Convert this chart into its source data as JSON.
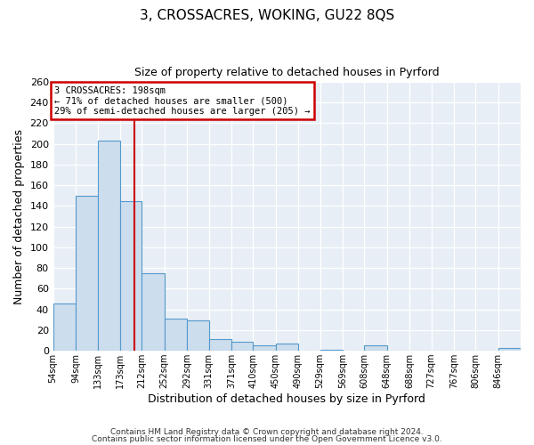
{
  "title": "3, CROSSACRES, WOKING, GU22 8QS",
  "subtitle": "Size of property relative to detached houses in Pyrford",
  "xlabel": "Distribution of detached houses by size in Pyrford",
  "ylabel": "Number of detached properties",
  "bin_labels": [
    "54sqm",
    "94sqm",
    "133sqm",
    "173sqm",
    "212sqm",
    "252sqm",
    "292sqm",
    "331sqm",
    "371sqm",
    "410sqm",
    "450sqm",
    "490sqm",
    "529sqm",
    "569sqm",
    "608sqm",
    "648sqm",
    "688sqm",
    "727sqm",
    "767sqm",
    "806sqm",
    "846sqm"
  ],
  "bar_values": [
    46,
    150,
    203,
    145,
    75,
    31,
    29,
    11,
    9,
    5,
    7,
    0,
    1,
    0,
    5,
    0,
    0,
    0,
    0,
    0,
    3
  ],
  "bar_color": "#ccdded",
  "bar_edge_color": "#5599cc",
  "ylim": [
    0,
    260
  ],
  "yticks": [
    0,
    20,
    40,
    60,
    80,
    100,
    120,
    140,
    160,
    180,
    200,
    220,
    240,
    260
  ],
  "vline_color": "#cc0000",
  "annotation_title": "3 CROSSACRES: 198sqm",
  "annotation_line1": "← 71% of detached houses are smaller (500)",
  "annotation_line2": "29% of semi-detached houses are larger (205) →",
  "annotation_box_color": "#ffffff",
  "annotation_box_edge_color": "#cc0000",
  "footer1": "Contains HM Land Registry data © Crown copyright and database right 2024.",
  "footer2": "Contains public sector information licensed under the Open Government Licence v3.0.",
  "property_sqm": 198,
  "bin_edges": [
    54,
    94,
    133,
    173,
    212,
    252,
    292,
    331,
    371,
    410,
    450,
    490,
    529,
    569,
    608,
    648,
    688,
    727,
    767,
    806,
    846,
    886
  ],
  "figsize": [
    6.0,
    5.0
  ],
  "dpi": 100
}
